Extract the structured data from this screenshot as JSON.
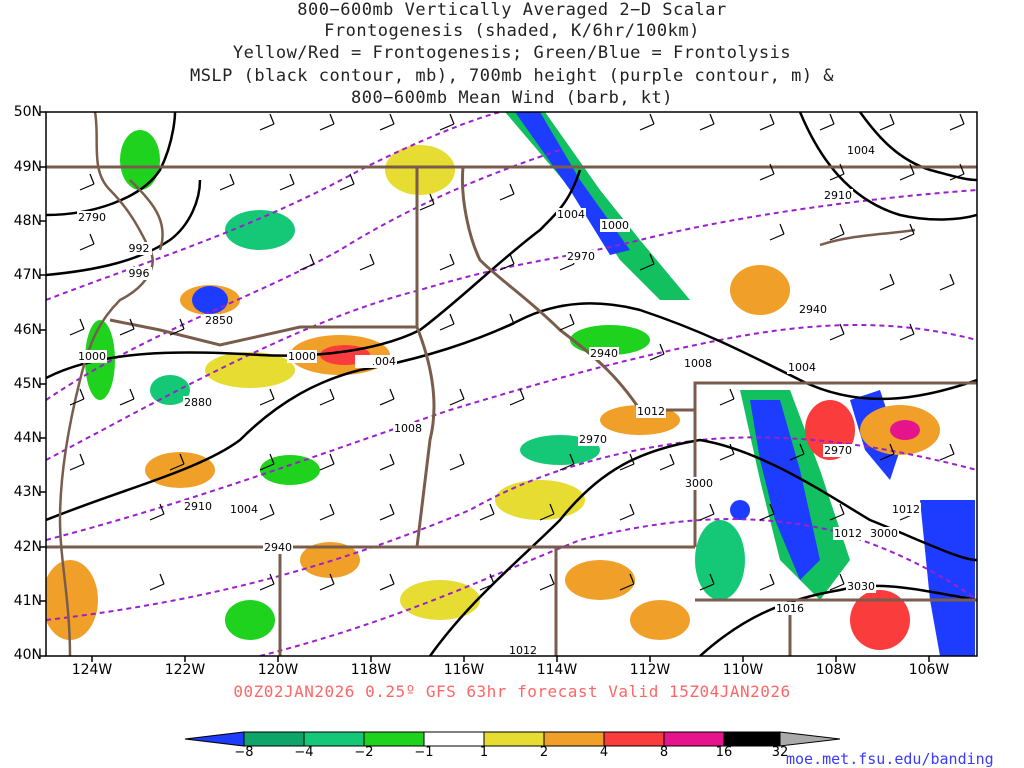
{
  "title": {
    "line1": "800−600mb Vertically Averaged 2−D Scalar",
    "line2": "Frontogenesis (shaded, K/6hr/100km)",
    "line3": "Yellow/Red = Frontogenesis;  Green/Blue = Frontolysis",
    "line4": "MSLP (black contour, mb), 700mb height (purple contour, m) &",
    "line5": "800−600mb Mean Wind (barb, kt)"
  },
  "lat_labels": [
    "50N",
    "49N",
    "48N",
    "47N",
    "46N",
    "45N",
    "44N",
    "43N",
    "42N",
    "41N",
    "40N"
  ],
  "lon_labels": [
    "124W",
    "122W",
    "120W",
    "118W",
    "116W",
    "114W",
    "112W",
    "110W",
    "108W",
    "106W"
  ],
  "footer": "00Z02JAN2026 0.25º GFS 63hr forecast Valid 15Z04JAN2026",
  "credit": "moe.met.fsu.edu/banding",
  "colorbar": {
    "ticks": [
      "−8",
      "−4",
      "−2",
      "−1",
      "1",
      "2",
      "4",
      "8",
      "16",
      "32"
    ],
    "colors": [
      "#1e3cff",
      "#0fa46a",
      "#14c878",
      "#1ed21e",
      "#ffffff",
      "#e6dc32",
      "#f0a028",
      "#fa3c3c",
      "#e6148c",
      "#000000",
      "#aaaaaa"
    ]
  },
  "contours": {
    "mslp": [
      "1004",
      "1000",
      "992",
      "996",
      "2790",
      "1000",
      "1004",
      "1008",
      "1012",
      "1008",
      "1004",
      "1012",
      "1016",
      "1000",
      "1004",
      "1008",
      "1012"
    ],
    "height": [
      "2790",
      "2850",
      "2880",
      "2910",
      "2940",
      "2910",
      "2970",
      "2940",
      "2970",
      "3000",
      "3030",
      "3000",
      "2910",
      "2940"
    ]
  },
  "colors": {
    "state_border": "#7a5c4c",
    "mslp": "#000000",
    "height": "#9b1fcf"
  }
}
